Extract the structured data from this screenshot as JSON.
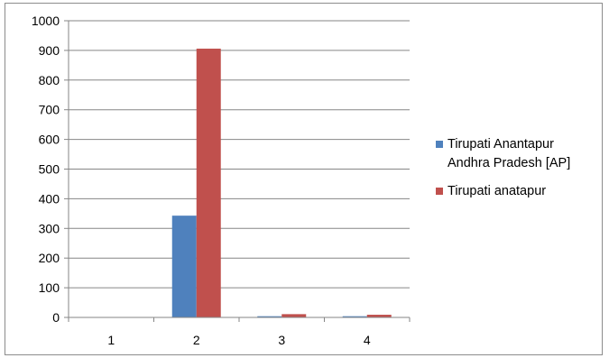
{
  "chart_data": {
    "type": "bar",
    "categories": [
      "1",
      "2",
      "3",
      "4"
    ],
    "series": [
      {
        "name": "Tirupati Anantapur Andhra Pradesh [AP]",
        "values": [
          0,
          343,
          4,
          4
        ],
        "color": "#4f81bd"
      },
      {
        "name": "Tirupati anatapur",
        "values": [
          0,
          906,
          11,
          9
        ],
        "color": "#c0504d"
      }
    ],
    "y_ticks": [
      "0",
      "100",
      "200",
      "300",
      "400",
      "500",
      "600",
      "700",
      "800",
      "900",
      "1000"
    ],
    "ylim": [
      0,
      1000
    ],
    "grid": true,
    "legend_position": "right"
  }
}
